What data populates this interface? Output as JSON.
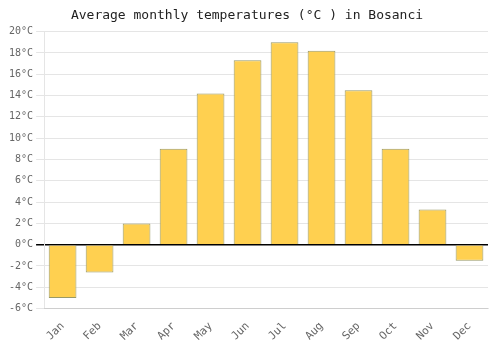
{
  "chart_data": {
    "type": "bar",
    "title": "Average monthly temperatures (°C ) in Bosanci",
    "categories": [
      "Jan",
      "Feb",
      "Mar",
      "Apr",
      "May",
      "Jun",
      "Jul",
      "Aug",
      "Sep",
      "Oct",
      "Nov",
      "Dec"
    ],
    "values": [
      -5.0,
      -2.6,
      2.0,
      9.0,
      14.2,
      17.3,
      19.0,
      18.2,
      14.5,
      9.0,
      3.3,
      -1.5
    ],
    "color": "#FFD050",
    "ylim": [
      -6,
      20
    ],
    "yticks": [
      {
        "value": -6,
        "label": "-6°C"
      },
      {
        "value": -4,
        "label": "-4°C"
      },
      {
        "value": -2,
        "label": "-2°C"
      },
      {
        "value": 0,
        "label": "0°C"
      },
      {
        "value": 2,
        "label": "2°C"
      },
      {
        "value": 4,
        "label": "4°C"
      },
      {
        "value": 6,
        "label": "6°C"
      },
      {
        "value": 8,
        "label": "8°C"
      },
      {
        "value": 10,
        "label": "10°C"
      },
      {
        "value": 12,
        "label": "12°C"
      },
      {
        "value": 14,
        "label": "14°C"
      },
      {
        "value": 16,
        "label": "16°C"
      },
      {
        "value": 18,
        "label": "18°C"
      },
      {
        "value": 20,
        "label": "20°C"
      }
    ],
    "grid": true
  }
}
